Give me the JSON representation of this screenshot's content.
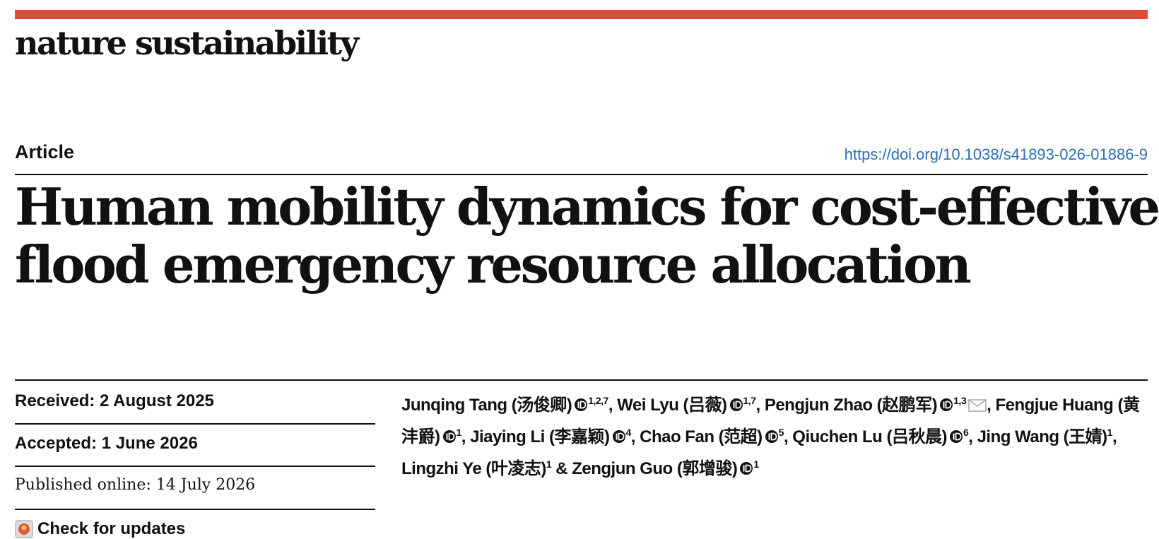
{
  "journal": "nature sustainability",
  "article_type": "Article",
  "doi": "https://doi.org/10.1038/s41893-026-01886-9",
  "title": [
    "Human mobility dynamics for cost-effective",
    "flood emergency resource allocation"
  ],
  "dates": [
    "Received: 2 August 2025",
    "Accepted: 1 June 2026",
    "Published online: 14 July 2026"
  ],
  "check_updates": "Check for updates",
  "authors": [
    {
      "name": "Junqing Tang (汤俊卿)",
      "orcid": true,
      "affiliations": "1,2,7",
      "corresponding": false,
      "separator": ","
    },
    {
      "name": "Wei Lyu (吕薇)",
      "orcid": true,
      "affiliations": "1,7",
      "corresponding": false,
      "separator": ","
    },
    {
      "name": "Pengjun Zhao (赵鹏军)",
      "orcid": true,
      "affiliations": "1,3",
      "corresponding": true,
      "separator": ","
    },
    {
      "name": "Fengjue Huang (黄沣爵)",
      "orcid": true,
      "affiliations": "1",
      "corresponding": false,
      "separator": ","
    },
    {
      "name": "Jiaying Li (李嘉颖)",
      "orcid": true,
      "affiliations": "4",
      "corresponding": false,
      "separator": ","
    },
    {
      "name": "Chao Fan (范超)",
      "orcid": true,
      "affiliations": "5",
      "corresponding": false,
      "separator": ","
    },
    {
      "name": "Qiuchen Lu (吕秋晨)",
      "orcid": true,
      "affiliations": "6",
      "corresponding": false,
      "separator": ","
    },
    {
      "name": "Jing Wang (王婧)",
      "orcid": false,
      "affiliations": "1",
      "corresponding": false,
      "separator": ","
    },
    {
      "name": "Lingzhi Ye (叶凌志)",
      "orcid": false,
      "affiliations": "1",
      "corresponding": false,
      "separator": "&"
    },
    {
      "name": "Zengjun Guo (郭增骏)",
      "orcid": true,
      "affiliations": "1",
      "corresponding": false,
      "separator": null
    }
  ]
}
